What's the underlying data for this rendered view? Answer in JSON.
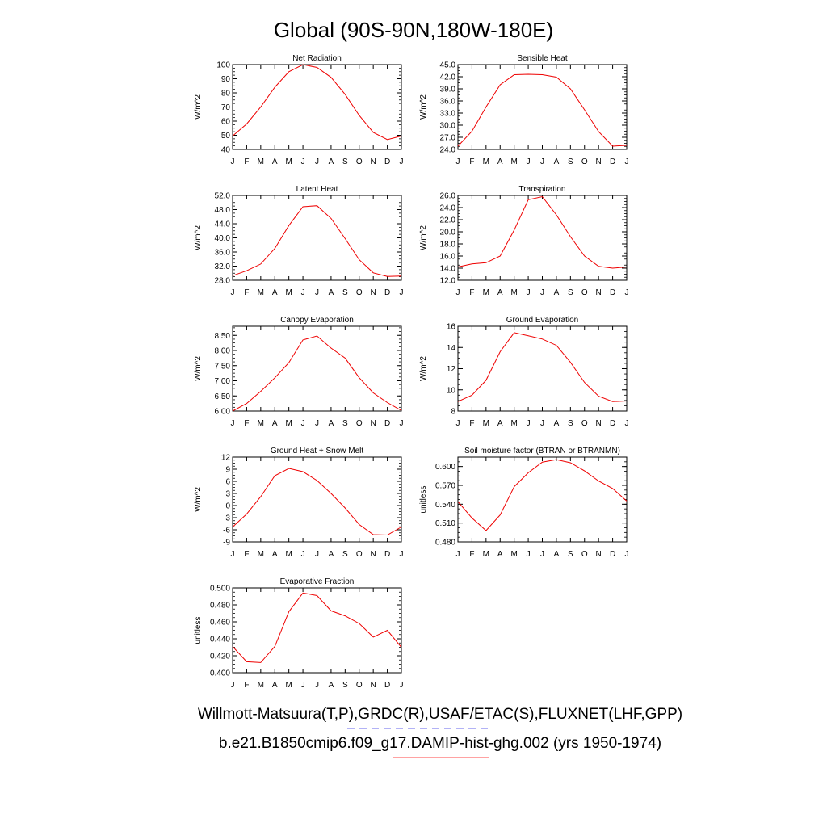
{
  "page_title": "Global (90S-90N,180W-180E)",
  "legend": {
    "obs_label": "Willmott-Matsuura(T,P),GRDC(R),USAF/ETAC(S),FLUXNET(LHF,GPP)",
    "obs_color": "#6666ee",
    "model_label": "b.e21.B1850cmip6.f09_g17.DAMIP-hist-ghg.002 (yrs 1950-1974)",
    "model_color": "#ff4444"
  },
  "series_color": "#ee0000",
  "months": [
    "J",
    "F",
    "M",
    "A",
    "M",
    "J",
    "J",
    "A",
    "S",
    "O",
    "N",
    "D",
    "J"
  ],
  "chart_data": [
    {
      "type": "line",
      "title": "Net Radiation",
      "ylabel": "W/m^2",
      "ylim": [
        40,
        100
      ],
      "yticks": [
        "40",
        "50",
        "60",
        "70",
        "80",
        "90",
        "100"
      ],
      "values": [
        49.5,
        58,
        70,
        84,
        95,
        100,
        98,
        91,
        79,
        64,
        52,
        47,
        49.5
      ]
    },
    {
      "type": "line",
      "title": "Sensible Heat",
      "ylabel": "W/m^2",
      "ylim": [
        24,
        45
      ],
      "yticks": [
        "24.0",
        "27.0",
        "30.0",
        "33.0",
        "36.0",
        "39.0",
        "42.0",
        "45.0"
      ],
      "values": [
        24.8,
        28.5,
        34.5,
        40.0,
        42.5,
        42.6,
        42.5,
        41.9,
        39.0,
        33.8,
        28.4,
        24.8,
        25.0
      ]
    },
    {
      "type": "line",
      "title": "Latent Heat",
      "ylabel": "W/m^2",
      "ylim": [
        28,
        52
      ],
      "yticks": [
        "28.0",
        "32.0",
        "36.0",
        "40.0",
        "44.0",
        "48.0",
        "52.0"
      ],
      "values": [
        29.3,
        30.7,
        32.6,
        37.0,
        43.5,
        48.8,
        49.1,
        45.5,
        39.8,
        33.8,
        30.1,
        29.1,
        29.2
      ]
    },
    {
      "type": "line",
      "title": "Transpiration",
      "ylabel": "W/m^2",
      "ylim": [
        12,
        26
      ],
      "yticks": [
        "12.0",
        "14.0",
        "16.0",
        "18.0",
        "20.0",
        "22.0",
        "24.0",
        "26.0"
      ],
      "values": [
        14.2,
        14.7,
        14.9,
        16.0,
        20.3,
        25.3,
        25.8,
        22.8,
        19.2,
        16.0,
        14.3,
        14.0,
        14.2
      ]
    },
    {
      "type": "line",
      "title": "Canopy Evaporation",
      "ylabel": "W/m^2",
      "ylim": [
        6.0,
        8.8
      ],
      "yticks": [
        "6.00",
        "6.50",
        "7.00",
        "7.50",
        "8.00",
        "8.50"
      ],
      "values": [
        6.0,
        6.25,
        6.65,
        7.1,
        7.6,
        8.35,
        8.48,
        8.08,
        7.75,
        7.1,
        6.6,
        6.28,
        6.02
      ]
    },
    {
      "type": "line",
      "title": "Ground Evaporation",
      "ylabel": "W/m^2",
      "ylim": [
        8,
        16
      ],
      "yticks": [
        "8",
        "10",
        "12",
        "14",
        "16"
      ],
      "values": [
        8.9,
        9.5,
        10.9,
        13.6,
        15.4,
        15.1,
        14.8,
        14.2,
        12.6,
        10.7,
        9.4,
        8.9,
        8.95
      ]
    },
    {
      "type": "line",
      "title": "Ground Heat + Snow Melt",
      "ylabel": "W/m^2",
      "ylim": [
        -9,
        12
      ],
      "yticks": [
        "-9",
        "-6",
        "-3",
        "0",
        "3",
        "6",
        "9",
        "12"
      ],
      "values": [
        -5.3,
        -2.1,
        2.2,
        7.4,
        9.2,
        8.4,
        6.2,
        3.0,
        -0.6,
        -4.7,
        -7.2,
        -7.3,
        -5.3
      ]
    },
    {
      "type": "line",
      "title": "Soil moisture factor (BTRAN or BTRANMN)",
      "ylabel": "unitless",
      "ylim": [
        0.48,
        0.615
      ],
      "yticks": [
        "0.480",
        "0.510",
        "0.540",
        "0.570",
        "0.600"
      ],
      "values": [
        0.544,
        0.518,
        0.498,
        0.523,
        0.568,
        0.59,
        0.607,
        0.611,
        0.606,
        0.593,
        0.577,
        0.565,
        0.545
      ]
    },
    {
      "type": "line",
      "title": "Evaporative Fraction",
      "ylabel": "unitless",
      "ylim": [
        0.4,
        0.5
      ],
      "yticks": [
        "0.400",
        "0.420",
        "0.440",
        "0.460",
        "0.480",
        "0.500"
      ],
      "values": [
        0.431,
        0.413,
        0.412,
        0.431,
        0.472,
        0.494,
        0.491,
        0.473,
        0.467,
        0.458,
        0.442,
        0.45,
        0.43
      ]
    }
  ]
}
